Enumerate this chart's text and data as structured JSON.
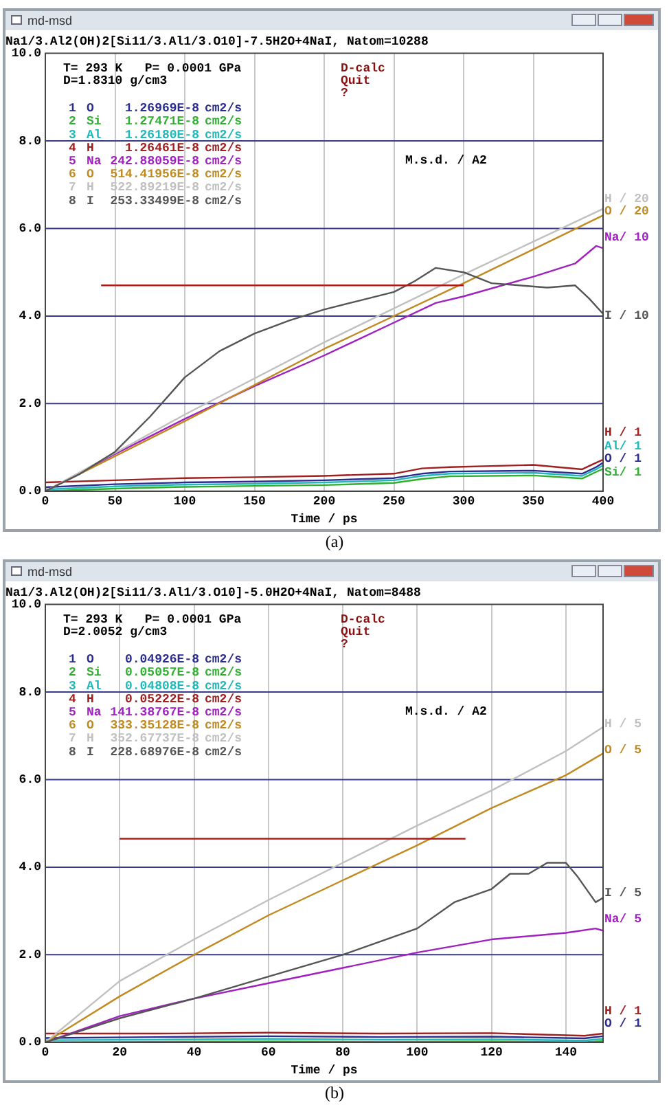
{
  "chart_data": [
    {
      "type": "line",
      "title": "Na1/3.Al2(OH)2[Si11/3.Al1/3.O10]-7.5H2O+4NaI, Natom=10288",
      "xlabel": "Time / ps",
      "xlim": [
        0,
        400
      ],
      "xticks": [
        0,
        50,
        100,
        150,
        200,
        250,
        300,
        350,
        400
      ],
      "ylim": [
        0,
        10
      ],
      "yticks": [
        {
          "value": 0,
          "label": "0.0"
        },
        {
          "value": 2,
          "label": "2.0"
        },
        {
          "value": 4,
          "label": "4.0"
        },
        {
          "value": 6,
          "label": "6.0"
        },
        {
          "value": 8,
          "label": "8.0"
        },
        {
          "value": 10,
          "label": "10.0"
        }
      ],
      "grid": "x",
      "legend": "top left",
      "marker": "none",
      "line_style": "solid",
      "ref_lines": [
        {
          "axis": "y",
          "value": 2,
          "color": "#3a3a8a"
        },
        {
          "axis": "y",
          "value": 4,
          "color": "#3a3a8a"
        },
        {
          "axis": "y",
          "value": 6,
          "color": "#3a3a8a"
        },
        {
          "axis": "y",
          "value": 8,
          "color": "#3a3a8a"
        }
      ],
      "annotations": [
        "T= 293 K   P= 0.0001 GPa",
        "D=1.8310 g/cm3",
        "D-calc",
        "Quit",
        "?",
        "M.s.d. / A2",
        "md-msd",
        "(a)",
        "H / 20",
        "O / 20",
        "Na/ 10",
        "I / 10",
        "H / 1",
        "Al/ 1",
        "O / 1",
        "Si/ 1"
      ],
      "series": [
        {
          "name": "1 O 1.26969E-8 cm2/s",
          "color": "#2b2b90",
          "x": [
            0,
            50,
            100,
            150,
            200,
            250,
            270,
            290,
            350,
            385,
            395,
            400
          ],
          "values": [
            0.09,
            0.16,
            0.2,
            0.22,
            0.25,
            0.3,
            0.4,
            0.45,
            0.47,
            0.4,
            0.55,
            0.65
          ]
        },
        {
          "name": "2 Si 1.27471E-8 cm2/s",
          "color": "#30b030",
          "x": [
            0,
            50,
            100,
            150,
            200,
            250,
            270,
            290,
            350,
            385,
            395,
            400
          ],
          "values": [
            0.0,
            0.06,
            0.1,
            0.12,
            0.14,
            0.19,
            0.28,
            0.34,
            0.36,
            0.29,
            0.44,
            0.51
          ]
        },
        {
          "name": "3 Al 1.26180E-8 cm2/s",
          "color": "#20b8b8",
          "x": [
            0,
            50,
            100,
            150,
            200,
            250,
            270,
            290,
            350,
            385,
            395,
            400
          ],
          "values": [
            0.04,
            0.11,
            0.15,
            0.17,
            0.2,
            0.25,
            0.35,
            0.4,
            0.42,
            0.35,
            0.5,
            0.59
          ]
        },
        {
          "name": "4 H 1.26461E-8 cm2/s",
          "color": "#a02020",
          "x": [
            0,
            50,
            100,
            150,
            200,
            250,
            270,
            290,
            350,
            385,
            395,
            400
          ],
          "values": [
            0.2,
            0.25,
            0.3,
            0.32,
            0.35,
            0.4,
            0.52,
            0.55,
            0.6,
            0.5,
            0.65,
            0.72
          ]
        },
        {
          "name": "5 Na 242.88059E-8 cm2/s",
          "color": "#a020c0",
          "x": [
            0,
            50,
            100,
            150,
            200,
            250,
            280,
            300,
            350,
            380,
            395,
            400
          ],
          "values": [
            0,
            0.85,
            1.65,
            2.4,
            3.1,
            3.85,
            4.3,
            4.45,
            4.9,
            5.2,
            5.6,
            5.55
          ]
        },
        {
          "name": "6 O 514.41956E-8 cm2/s",
          "color": "#c08a20",
          "x": [
            0,
            100,
            200,
            300,
            400
          ],
          "values": [
            0,
            1.6,
            3.25,
            4.75,
            6.3
          ]
        },
        {
          "name": "7 H 522.89219E-8 cm2/s",
          "color": "#c0c0c0",
          "x": [
            0,
            100,
            200,
            300,
            400
          ],
          "values": [
            0,
            1.75,
            3.4,
            4.95,
            6.45
          ]
        },
        {
          "name": "8 I 253.33499E-8 cm2/s",
          "color": "#555555",
          "x": [
            0,
            25,
            50,
            75,
            100,
            125,
            150,
            175,
            200,
            225,
            250,
            265,
            280,
            300,
            320,
            340,
            360,
            380,
            390,
            400
          ],
          "values": [
            0,
            0.4,
            0.9,
            1.7,
            2.6,
            3.2,
            3.6,
            3.9,
            4.15,
            4.35,
            4.55,
            4.8,
            5.1,
            5.0,
            4.75,
            4.7,
            4.65,
            4.7,
            4.4,
            4.05
          ]
        },
        {
          "color": "#b01818",
          "x": [
            40,
            300
          ],
          "values": [
            4.7,
            4.7
          ]
        }
      ]
    },
    {
      "type": "line",
      "title": "Na1/3.Al2(OH)2[Si11/3.Al1/3.O10]-5.0H2O+4NaI, Natom=8488",
      "xlabel": "Time / ps",
      "xlim": [
        0,
        150
      ],
      "xticks": [
        0,
        20,
        40,
        60,
        80,
        100,
        120,
        140
      ],
      "ylim": [
        0,
        10
      ],
      "yticks": [
        {
          "value": 0,
          "label": "0.0"
        },
        {
          "value": 2,
          "label": "2.0"
        },
        {
          "value": 4,
          "label": "4.0"
        },
        {
          "value": 6,
          "label": "6.0"
        },
        {
          "value": 8,
          "label": "8.0"
        },
        {
          "value": 10,
          "label": "10.0"
        }
      ],
      "grid": "x",
      "legend": "top left",
      "marker": "none",
      "line_style": "solid",
      "ref_lines": [
        {
          "axis": "y",
          "value": 2,
          "color": "#3a3a8a"
        },
        {
          "axis": "y",
          "value": 4,
          "color": "#3a3a8a"
        },
        {
          "axis": "y",
          "value": 6,
          "color": "#3a3a8a"
        },
        {
          "axis": "y",
          "value": 8,
          "color": "#3a3a8a"
        }
      ],
      "annotations": [
        "T= 293 K   P= 0.0001 GPa",
        "D=2.0052 g/cm3",
        "D-calc",
        "Quit",
        "?",
        "M.s.d. / A2",
        "md-msd",
        "(b)",
        "H / 5",
        "O / 5",
        "I / 5",
        "Na/ 5",
        "H / 1",
        "O / 1"
      ],
      "series": [
        {
          "name": "1 O 0.04926E-8 cm2/s",
          "color": "#2b2b90",
          "x": [
            0,
            30,
            60,
            90,
            120,
            145,
            150
          ],
          "values": [
            0.1,
            0.12,
            0.14,
            0.12,
            0.13,
            0.09,
            0.14
          ]
        },
        {
          "name": "2 Si 0.05057E-8 cm2/s",
          "color": "#30b030",
          "x": [
            0,
            30,
            60,
            90,
            120,
            145,
            150
          ],
          "values": [
            0.0,
            0.01,
            0.02,
            0.01,
            0.02,
            0.0,
            0.03
          ]
        },
        {
          "name": "3 Al 0.04808E-8 cm2/s",
          "color": "#20b8b8",
          "x": [
            0,
            30,
            60,
            90,
            120,
            145,
            150
          ],
          "values": [
            0.05,
            0.06,
            0.08,
            0.06,
            0.07,
            0.04,
            0.08
          ]
        },
        {
          "name": "4 H 0.05222E-8 cm2/s",
          "color": "#a02020",
          "x": [
            0,
            30,
            60,
            90,
            120,
            145,
            150
          ],
          "values": [
            0.2,
            0.2,
            0.22,
            0.2,
            0.21,
            0.15,
            0.2
          ]
        },
        {
          "name": "5 Na 141.38767E-8 cm2/s",
          "color": "#a020c0",
          "x": [
            0,
            20,
            40,
            60,
            80,
            100,
            120,
            140,
            148,
            150
          ],
          "values": [
            0,
            0.6,
            1.0,
            1.35,
            1.7,
            2.05,
            2.35,
            2.5,
            2.6,
            2.55
          ]
        },
        {
          "name": "6 O 333.35128E-8 cm2/s",
          "color": "#c08a20",
          "x": [
            0,
            20,
            40,
            60,
            80,
            100,
            120,
            140,
            150
          ],
          "values": [
            0,
            1.05,
            2.0,
            2.9,
            3.7,
            4.5,
            5.35,
            6.1,
            6.6
          ]
        },
        {
          "name": "7 H 352.67737E-8 cm2/s",
          "color": "#c0c0c0",
          "x": [
            0,
            20,
            40,
            60,
            80,
            100,
            120,
            140,
            150
          ],
          "values": [
            0,
            1.4,
            2.35,
            3.25,
            4.1,
            4.95,
            5.75,
            6.65,
            7.2
          ]
        },
        {
          "name": "8 I 228.68976E-8 cm2/s",
          "color": "#555555",
          "x": [
            0,
            20,
            40,
            60,
            80,
            100,
            110,
            120,
            125,
            130,
            135,
            140,
            143,
            148,
            150
          ],
          "values": [
            0,
            0.55,
            1.0,
            1.5,
            2.0,
            2.6,
            3.2,
            3.5,
            3.85,
            3.85,
            4.1,
            4.1,
            3.8,
            3.2,
            3.3
          ]
        },
        {
          "color": "#b01818",
          "x": [
            20,
            113
          ],
          "values": [
            4.65,
            4.65
          ]
        }
      ]
    }
  ]
}
